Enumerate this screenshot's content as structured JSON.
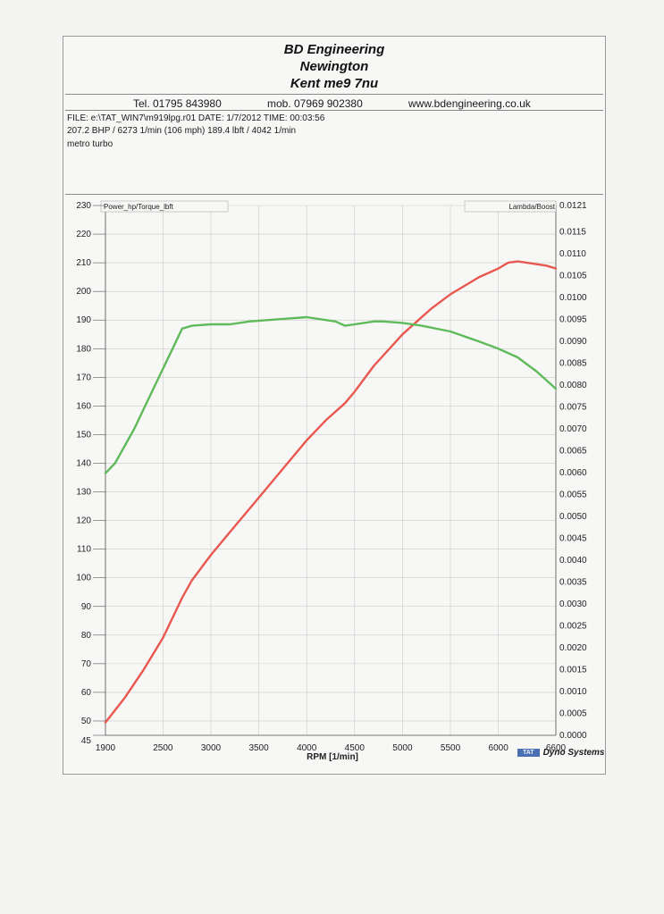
{
  "header": {
    "company": "BD Engineering",
    "town": "Newington",
    "address": "Kent me9 7nu",
    "tel": "Tel. 01795 843980",
    "mob": "mob. 07969 902380",
    "web": "www.bdengineering.co.uk"
  },
  "run_info": {
    "file_line": "FILE: e:\\TAT_WIN7\\m919lpg.r01  DATE: 1/7/2012  TIME: 00:03:56",
    "peak_line": "207.2 BHP / 6273 1/min (106 mph)    189.4 lbft / 4042 1/min",
    "note": "metro turbo"
  },
  "brand": {
    "badge": "TAT",
    "name": "Dyno Systems"
  },
  "colors": {
    "power": "#e8584f",
    "torque": "#5fba5a",
    "grid": "#c9c9c9"
  },
  "chart_data": {
    "type": "line",
    "xlabel": "RPM  [1/min]",
    "ylabel_left": "Power_hp/Torque_lbft",
    "ylabel_right": "Lambda/Boost",
    "xlim": [
      1900,
      6600
    ],
    "ylim_left": [
      45,
      230
    ],
    "ylim_right": [
      0.0,
      0.0121
    ],
    "x_ticks": [
      1900,
      2500,
      3000,
      3500,
      4000,
      4500,
      5000,
      5500,
      6000,
      6600
    ],
    "y_ticks_left": [
      45,
      50,
      60,
      70,
      80,
      90,
      100,
      110,
      120,
      130,
      140,
      150,
      160,
      170,
      180,
      190,
      200,
      210,
      220,
      230
    ],
    "y_ticks_right": [
      "0.0000",
      "0.0005",
      "0.0010",
      "0.0015",
      "0.0020",
      "0.0025",
      "0.0030",
      "0.0035",
      "0.0040",
      "0.0045",
      "0.0050",
      "0.0055",
      "0.0060",
      "0.0065",
      "0.0070",
      "0.0075",
      "0.0080",
      "0.0085",
      "0.0090",
      "0.0095",
      "0.0100",
      "0.0105",
      "0.0110",
      "0.0115",
      "0.0121"
    ],
    "grid": true,
    "series": [
      {
        "key": "power",
        "x": [
          1900,
          2100,
          2300,
          2500,
          2700,
          2800,
          3000,
          3200,
          3500,
          3800,
          4000,
          4200,
          4400,
          4500,
          4700,
          5000,
          5300,
          5500,
          5800,
          6000,
          6100,
          6200,
          6300,
          6500,
          6600
        ],
        "y": [
          49.5,
          58,
          68,
          79,
          93,
          99,
          108,
          116,
          128,
          140,
          148,
          155,
          161,
          165,
          174,
          185,
          194,
          199,
          205,
          208,
          210,
          210.5,
          210,
          209,
          208
        ]
      },
      {
        "key": "torque",
        "x": [
          1900,
          2000,
          2200,
          2400,
          2600,
          2700,
          2800,
          3000,
          3200,
          3400,
          3600,
          3800,
          4000,
          4200,
          4300,
          4400,
          4500,
          4700,
          4800,
          5000,
          5200,
          5500,
          5800,
          6000,
          6200,
          6400,
          6600
        ],
        "y": [
          136.5,
          140,
          152,
          166,
          180,
          187,
          188,
          188.5,
          188.5,
          189.5,
          190,
          190.5,
          191,
          190,
          189.5,
          188,
          188.5,
          189.5,
          189.5,
          189,
          188,
          186,
          182.5,
          180,
          177,
          172,
          166
        ]
      }
    ]
  }
}
